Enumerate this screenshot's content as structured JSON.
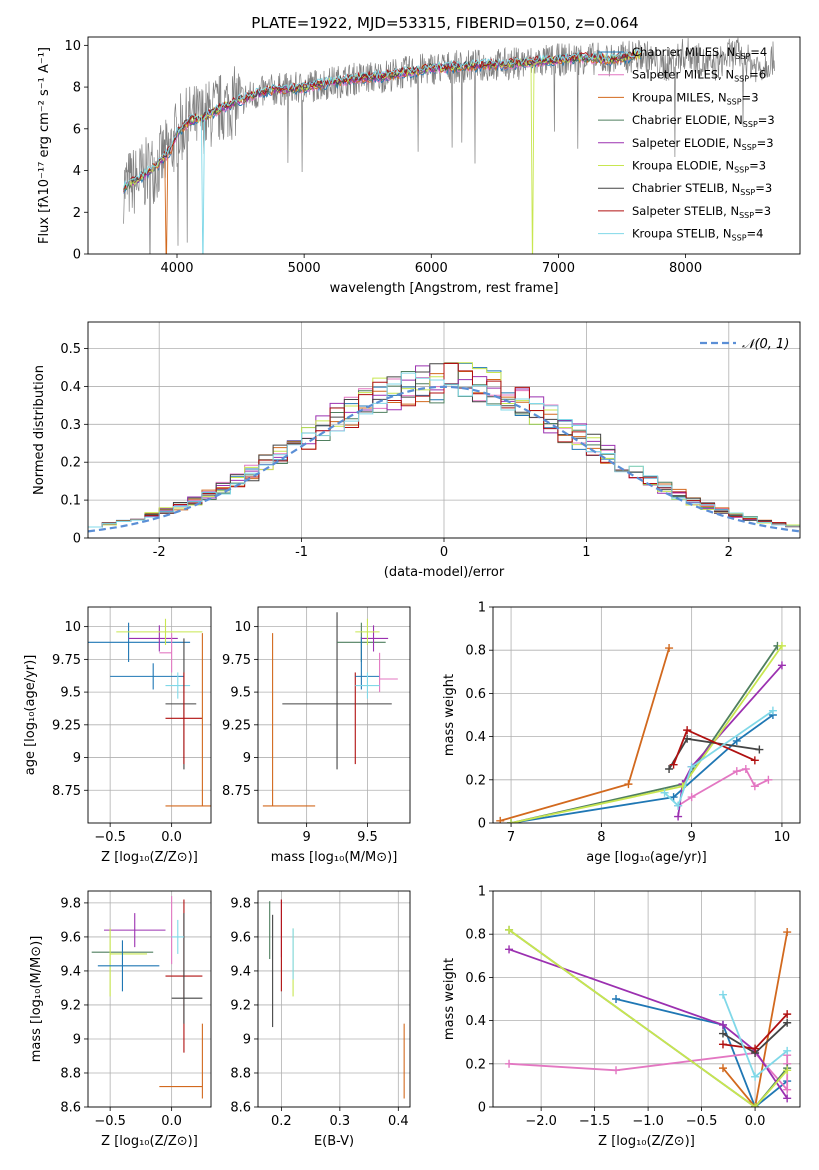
{
  "figure": {
    "title": "PLATE=1922, MJD=53315, FIBERID=0150, z=0.064"
  },
  "models": [
    {
      "name": "Chabrier MILES",
      "nssp": "4",
      "color": "#1f77b4"
    },
    {
      "name": "Salpeter MILES",
      "nssp": "6",
      "color": "#e377c2"
    },
    {
      "name": "Kroupa MILES",
      "nssp": "3",
      "color": "#d2691e"
    },
    {
      "name": "Chabrier ELODIE",
      "nssp": "3",
      "color": "#4f7f5f"
    },
    {
      "name": "Salpeter ELODIE",
      "nssp": "3",
      "color": "#9b30b0"
    },
    {
      "name": "Kroupa ELODIE",
      "nssp": "3",
      "color": "#c8e650"
    },
    {
      "name": "Chabrier STELIB",
      "nssp": "3",
      "color": "#444444"
    },
    {
      "name": "Salpeter STELIB",
      "nssp": "3",
      "color": "#b01010"
    },
    {
      "name": "Kroupa STELIB",
      "nssp": "4",
      "color": "#80d8e8"
    }
  ],
  "chart_data": [
    {
      "id": "spectrum",
      "type": "line",
      "title": "PLATE=1922, MJD=53315, FIBERID=0150, z=0.064",
      "xlabel": "wavelength [Angstrom, rest frame]",
      "ylabel": "Flux [fλ10⁻¹⁷ erg cm⁻² s⁻¹ A⁻¹]",
      "xlim": [
        3300,
        8900
      ],
      "ylim": [
        0,
        10.4
      ],
      "xticks": [
        4000,
        5000,
        6000,
        7000,
        8000
      ],
      "yticks": [
        0,
        2,
        4,
        6,
        8,
        10
      ],
      "data_color": "#808080",
      "model_curve": {
        "x": [
          3580,
          3700,
          3850,
          3950,
          4000,
          4100,
          4200,
          4350,
          4500,
          4700,
          4800,
          4900,
          5000,
          5200,
          5400,
          5600,
          5800,
          6000,
          6300,
          6600,
          7000,
          7200,
          7400,
          7600
        ],
        "y": [
          3.2,
          3.6,
          4.3,
          5.0,
          5.8,
          6.4,
          6.5,
          7.0,
          7.4,
          7.8,
          7.9,
          7.9,
          8.0,
          8.2,
          8.4,
          8.5,
          8.7,
          8.9,
          9.0,
          9.1,
          9.3,
          9.4,
          9.3,
          9.5
        ]
      },
      "legend_loc": "right"
    },
    {
      "id": "residuals",
      "type": "step",
      "xlabel": "(data-model)/error",
      "ylabel": "Normed distribution",
      "xlim": [
        -2.5,
        2.5
      ],
      "ylim": [
        0,
        0.57
      ],
      "xticks": [
        -2,
        -1,
        0,
        1,
        2
      ],
      "yticks": [
        0.0,
        0.1,
        0.2,
        0.3,
        0.4,
        0.5
      ],
      "bins": {
        "start": -2.5,
        "width": 0.1,
        "count": 50
      },
      "gaussian_label": "𝒩(0, 1)",
      "gaussian_color": "#5b8fd6"
    },
    {
      "id": "age_vs_z",
      "type": "errorbar",
      "xlabel": "Z [log₁₀(Z/Z⊙)]",
      "ylabel": "age [log₁₀(age/yr)]",
      "xlim": [
        -0.68,
        0.32
      ],
      "ylim": [
        8.5,
        10.15
      ],
      "xticks": [
        -0.5,
        0.0
      ],
      "xticklabels": [
        "−0.5",
        "0.0"
      ],
      "yticks": [
        8.75,
        9.0,
        9.25,
        9.5,
        9.75,
        10.0
      ],
      "points": [
        {
          "x": -0.15,
          "xerr": [
            0.5,
            0.5
          ],
          "y": 9.88,
          "yerr": [
            0.15,
            0.15
          ],
          "m": 0,
          "xo": -0.2
        },
        {
          "x": -0.15,
          "xerr": [
            0.35,
            0.25
          ],
          "y": 9.62,
          "yerr": [
            0.1,
            0.1
          ],
          "m": 0
        },
        {
          "x": -0.1,
          "xerr": [
            0.25,
            0.15
          ],
          "y": 9.91,
          "yerr": [
            0.1,
            0.1
          ],
          "m": 4
        },
        {
          "x": -0.05,
          "xerr": [
            0.4,
            0.3
          ],
          "y": 9.96,
          "yerr": [
            0.1,
            0.1
          ],
          "m": 5
        },
        {
          "x": 0.05,
          "xerr": [
            0.1,
            0.1
          ],
          "y": 9.55,
          "yerr": [
            0.1,
            0.1
          ],
          "m": 8
        },
        {
          "x": 0.1,
          "xerr": [
            0.15,
            0.1
          ],
          "y": 9.41,
          "yerr": [
            0.5,
            0.5
          ],
          "m": 6
        },
        {
          "x": 0.1,
          "xerr": [
            0.15,
            0.15
          ],
          "y": 9.3,
          "yerr": [
            0.35,
            0.35
          ],
          "m": 7
        },
        {
          "x": 0.0,
          "xerr": [
            0.1,
            0.0
          ],
          "y": 9.8,
          "yerr": [
            0.15,
            0.15
          ],
          "m": 1
        },
        {
          "x": 0.0,
          "xerr": [
            0.3,
            0.3
          ],
          "y": 8.63,
          "yerr": [
            0.0,
            1.32
          ],
          "m": 2,
          "xo": 0.25
        }
      ]
    },
    {
      "id": "age_vs_mass",
      "type": "errorbar",
      "xlabel": "mass [log₁₀(M/M⊙)]",
      "ylabel": "",
      "xlim": [
        8.6,
        9.85
      ],
      "ylim": [
        8.5,
        10.15
      ],
      "xticks": [
        9.0,
        9.5
      ],
      "yticks": [
        8.75,
        9.0,
        9.25,
        9.5,
        9.75,
        10.0
      ],
      "points": [
        {
          "x": 8.72,
          "xerr": [
            0.08,
            0.35
          ],
          "y": 8.63,
          "yerr": [
            0.0,
            1.32
          ],
          "m": 2
        },
        {
          "x": 9.25,
          "xerr": [
            0.45,
            0.45
          ],
          "y": 9.41,
          "yerr": [
            0.5,
            0.7
          ],
          "m": 6
        },
        {
          "x": 9.4,
          "xerr": [
            0.0,
            0.0
          ],
          "y": 9.3,
          "yerr": [
            0.35,
            0.35
          ],
          "m": 7
        },
        {
          "x": 9.45,
          "xerr": [
            0.2,
            0.2
          ],
          "y": 9.88,
          "yerr": [
            0.15,
            0.15
          ],
          "m": 3
        },
        {
          "x": 9.45,
          "xerr": [
            0.05,
            0.15
          ],
          "y": 9.62,
          "yerr": [
            0.1,
            0.3
          ],
          "m": 0
        },
        {
          "x": 9.55,
          "xerr": [
            0.1,
            0.12
          ],
          "y": 9.91,
          "yerr": [
            0.1,
            0.1
          ],
          "m": 4
        },
        {
          "x": 9.5,
          "xerr": [
            0.1,
            0.1
          ],
          "y": 9.96,
          "yerr": [
            0.1,
            0.1
          ],
          "m": 5
        },
        {
          "x": 9.6,
          "xerr": [
            0.0,
            0.15
          ],
          "y": 9.6,
          "yerr": [
            0.1,
            0.2
          ],
          "m": 1
        },
        {
          "x": 9.5,
          "xerr": [
            0.1,
            0.1
          ],
          "y": 9.55,
          "yerr": [
            0.1,
            0.1
          ],
          "m": 8
        }
      ]
    },
    {
      "id": "weight_vs_age",
      "type": "line",
      "xlabel": "age [log₁₀(age/yr)]",
      "ylabel": "mass weight",
      "xlim": [
        6.8,
        10.2
      ],
      "ylim": [
        0,
        1.0
      ],
      "xticks": [
        7,
        8,
        9,
        10
      ],
      "yticks": [
        0.0,
        0.2,
        0.4,
        0.6,
        0.8,
        1.0
      ],
      "series": [
        {
          "m": 2,
          "x": [
            6.88,
            8.3,
            8.75
          ],
          "y": [
            0.01,
            0.18,
            0.81
          ]
        },
        {
          "m": 0,
          "x": [
            7.0,
            8.8,
            9.5,
            9.9
          ],
          "y": [
            0.0,
            0.12,
            0.38,
            0.5
          ]
        },
        {
          "m": 1,
          "x": [
            8.85,
            9.0,
            9.5,
            9.6,
            9.7,
            9.85
          ],
          "y": [
            0.08,
            0.12,
            0.24,
            0.25,
            0.17,
            0.2
          ]
        },
        {
          "m": 3,
          "x": [
            7.0,
            8.9,
            9.95
          ],
          "y": [
            0.0,
            0.18,
            0.82
          ]
        },
        {
          "m": 4,
          "x": [
            8.85,
            8.9,
            9.0,
            10.0
          ],
          "y": [
            0.03,
            0.18,
            0.26,
            0.73
          ]
        },
        {
          "m": 5,
          "x": [
            7.0,
            8.9,
            10.0
          ],
          "y": [
            0.0,
            0.17,
            0.82
          ]
        },
        {
          "m": 6,
          "x": [
            8.75,
            8.95,
            9.75
          ],
          "y": [
            0.25,
            0.39,
            0.34
          ]
        },
        {
          "m": 7,
          "x": [
            8.8,
            8.95,
            9.7
          ],
          "y": [
            0.27,
            0.43,
            0.29
          ]
        },
        {
          "m": 8,
          "x": [
            8.7,
            8.85,
            9.0,
            9.9
          ],
          "y": [
            0.14,
            0.08,
            0.26,
            0.52
          ]
        }
      ]
    },
    {
      "id": "mass_vs_z",
      "type": "errorbar",
      "xlabel": "Z [log₁₀(Z/Z⊙)]",
      "ylabel": "mass [log₁₀(M/M⊙)]",
      "xlim": [
        -0.68,
        0.32
      ],
      "ylim": [
        8.6,
        9.87
      ],
      "xticks": [
        -0.5,
        0.0
      ],
      "xticklabels": [
        "−0.5",
        "0.0"
      ],
      "yticks": [
        8.6,
        8.8,
        9.0,
        9.2,
        9.4,
        9.6,
        9.8
      ],
      "points": [
        {
          "x": -0.3,
          "xerr": [
            0.25,
            0.25
          ],
          "y": 9.64,
          "yerr": [
            0.0,
            0.0
          ],
          "m": 4
        },
        {
          "x": -0.5,
          "xerr": [
            0.15,
            0.35
          ],
          "y": 9.51,
          "yerr": [
            0.0,
            0.0
          ],
          "m": 3
        },
        {
          "x": -0.5,
          "xerr": [
            0.0,
            0.3
          ],
          "y": 9.5,
          "yerr": [
            0.25,
            0.15
          ],
          "m": 5
        },
        {
          "x": -0.4,
          "xerr": [
            0.2,
            0.3
          ],
          "y": 9.43,
          "yerr": [
            0.15,
            0.15
          ],
          "m": 0
        },
        {
          "x": -0.3,
          "xerr": [
            0.0,
            0.0
          ],
          "y": 9.64,
          "yerr": [
            0.1,
            0.1
          ],
          "m": 4
        },
        {
          "x": 0.0,
          "xerr": [
            0.0,
            0.0
          ],
          "y": 9.64,
          "yerr": [
            0.2,
            0.2
          ],
          "m": 1
        },
        {
          "x": 0.1,
          "xerr": [
            0.15,
            0.15
          ],
          "y": 9.37,
          "yerr": [
            0.45,
            0.45
          ],
          "m": 7
        },
        {
          "x": 0.1,
          "xerr": [
            0.1,
            0.15
          ],
          "y": 9.24,
          "yerr": [
            0.15,
            0.5
          ],
          "m": 6
        },
        {
          "x": 0.05,
          "xerr": [
            0.05,
            0.05
          ],
          "y": 9.6,
          "yerr": [
            0.1,
            0.1
          ],
          "m": 8
        },
        {
          "x": 0.25,
          "xerr": [
            0.35,
            0.0
          ],
          "y": 8.72,
          "yerr": [
            0.07,
            0.37
          ],
          "m": 2
        }
      ]
    },
    {
      "id": "mass_vs_ebv",
      "type": "errorbar",
      "xlabel": "E(B-V)",
      "ylabel": "",
      "xlim": [
        0.16,
        0.42
      ],
      "ylim": [
        8.6,
        9.87
      ],
      "xticks": [
        0.2,
        0.3,
        0.4
      ],
      "yticks": [
        8.6,
        8.8,
        9.0,
        9.2,
        9.4,
        9.6,
        9.8
      ],
      "points": [
        {
          "x": 0.18,
          "xerr": [
            0,
            0
          ],
          "y": 9.64,
          "yerr": [
            0.17,
            0.17
          ],
          "m": 3
        },
        {
          "x": 0.185,
          "xerr": [
            0,
            0
          ],
          "y": 9.4,
          "yerr": [
            0.33,
            0.33
          ],
          "m": 6
        },
        {
          "x": 0.2,
          "xerr": [
            0,
            0
          ],
          "y": 9.65,
          "yerr": [
            0.17,
            0.17
          ],
          "m": 1
        },
        {
          "x": 0.2,
          "xerr": [
            0,
            0
          ],
          "y": 9.55,
          "yerr": [
            0.27,
            0.27
          ],
          "m": 7
        },
        {
          "x": 0.22,
          "xerr": [
            0,
            0
          ],
          "y": 9.45,
          "yerr": [
            0.2,
            0.2
          ],
          "m": 5
        },
        {
          "x": 0.22,
          "xerr": [
            0,
            0
          ],
          "y": 9.5,
          "yerr": [
            0.15,
            0.15
          ],
          "m": 8
        },
        {
          "x": 0.41,
          "xerr": [
            0,
            0
          ],
          "y": 8.87,
          "yerr": [
            0.22,
            0.22
          ],
          "m": 2
        }
      ]
    },
    {
      "id": "weight_vs_z",
      "type": "line",
      "xlabel": "Z [log₁₀(Z/Z⊙)]",
      "ylabel": "mass weight",
      "xlim": [
        -2.45,
        0.42
      ],
      "ylim": [
        0,
        1.0
      ],
      "xticks": [
        -2.0,
        -1.5,
        -1.0,
        -0.5,
        0.0
      ],
      "xticklabels": [
        "−2.0",
        "−1.5",
        "−1.0",
        "−0.5",
        "0.0"
      ],
      "yticks": [
        0.0,
        0.2,
        0.4,
        0.6,
        0.8,
        1.0
      ],
      "series": [
        {
          "m": 0,
          "x": [
            -1.3,
            -0.3,
            0.0,
            0.3
          ],
          "y": [
            0.5,
            0.38,
            0.0,
            0.12
          ]
        },
        {
          "m": 1,
          "x": [
            -2.3,
            -1.3,
            0.0,
            0.3,
            0.3,
            0.3
          ],
          "y": [
            0.2,
            0.17,
            0.25,
            0.08,
            0.2,
            0.24
          ]
        },
        {
          "m": 2,
          "x": [
            -0.3,
            0.0,
            0.3
          ],
          "y": [
            0.18,
            0.0,
            0.81
          ]
        },
        {
          "m": 3,
          "x": [
            -2.3,
            0.0,
            0.3
          ],
          "y": [
            0.82,
            0.0,
            0.18
          ]
        },
        {
          "m": 4,
          "x": [
            -2.3,
            -0.3,
            0.0,
            0.3
          ],
          "y": [
            0.73,
            0.38,
            0.26,
            0.04
          ]
        },
        {
          "m": 5,
          "x": [
            -2.3,
            0.0,
            0.3
          ],
          "y": [
            0.82,
            0.0,
            0.17
          ]
        },
        {
          "m": 6,
          "x": [
            -0.3,
            0.0,
            0.3
          ],
          "y": [
            0.34,
            0.25,
            0.39
          ]
        },
        {
          "m": 7,
          "x": [
            -0.3,
            0.0,
            0.3
          ],
          "y": [
            0.29,
            0.27,
            0.43
          ]
        },
        {
          "m": 8,
          "x": [
            -0.3,
            0.0,
            0.3
          ],
          "y": [
            0.52,
            0.14,
            0.26
          ]
        }
      ]
    }
  ]
}
